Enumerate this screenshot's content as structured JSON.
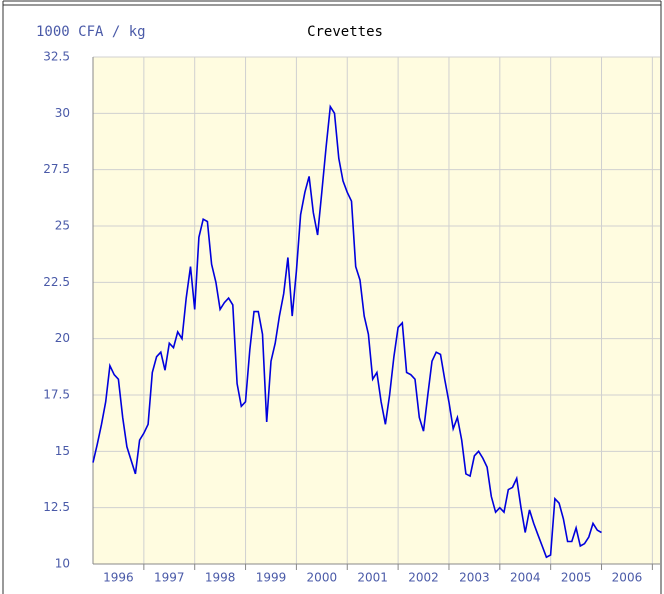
{
  "chart_data": {
    "type": "line",
    "title": "Crevettes",
    "ylabel": "1000 CFA / kg",
    "xlim": [
      1996,
      2007.15
    ],
    "ylim": [
      10,
      32.5
    ],
    "yticks": [
      10,
      12.5,
      15,
      17.5,
      20,
      22.5,
      25,
      27.5,
      30,
      32.5
    ],
    "xticks": [
      {
        "value": 1996.5,
        "label": "1996"
      },
      {
        "value": 1997.5,
        "label": "1997"
      },
      {
        "value": 1998.5,
        "label": "1998"
      },
      {
        "value": 1999.5,
        "label": "1999"
      },
      {
        "value": 2000.5,
        "label": "2000"
      },
      {
        "value": 2001.5,
        "label": "2001"
      },
      {
        "value": 2002.5,
        "label": "2002"
      },
      {
        "value": 2003.5,
        "label": "2003"
      },
      {
        "value": 2004.5,
        "label": "2004"
      },
      {
        "value": 2005.5,
        "label": "2005"
      },
      {
        "value": 2006.5,
        "label": "2006"
      }
    ],
    "xgrid": [
      1997,
      1998,
      1999,
      2000,
      2001,
      2002,
      2003,
      2004,
      2005,
      2006,
      2007
    ],
    "grid": true,
    "background": "#fffce0",
    "color": "#0000dd",
    "x_start": 1996,
    "x_step": 0.08333,
    "values": [
      14.5,
      15.3,
      16.2,
      17.2,
      18.8,
      18.4,
      18.2,
      16.5,
      15.2,
      14.6,
      14.0,
      15.5,
      15.8,
      16.2,
      18.5,
      19.2,
      19.4,
      18.6,
      19.8,
      19.6,
      20.3,
      20.0,
      21.8,
      23.2,
      21.3,
      24.5,
      25.3,
      25.2,
      23.3,
      22.5,
      21.3,
      21.6,
      21.8,
      21.5,
      18.0,
      17.0,
      17.2,
      19.5,
      21.2,
      21.2,
      20.2,
      16.3,
      19.0,
      19.8,
      21.0,
      22.0,
      23.6,
      21.0,
      23.0,
      25.5,
      26.5,
      27.2,
      25.6,
      24.6,
      26.5,
      28.5,
      30.3,
      30.0,
      28.0,
      27.0,
      26.5,
      26.1,
      23.2,
      22.6,
      21.0,
      20.2,
      18.2,
      18.5,
      17.2,
      16.2,
      17.5,
      19.2,
      20.5,
      20.7,
      18.5,
      18.4,
      18.2,
      16.5,
      15.9,
      17.5,
      19.0,
      19.4,
      19.3,
      18.2,
      17.2,
      16.0,
      16.5,
      15.5,
      14.0,
      13.9,
      14.8,
      15.0,
      14.7,
      14.3,
      13.0,
      12.3,
      12.5,
      12.3,
      13.3,
      13.4,
      13.8,
      12.5,
      11.4,
      12.4,
      11.8,
      11.3,
      10.8,
      10.3,
      10.4,
      12.9,
      12.7,
      12.0,
      11.0,
      11.0,
      11.6,
      10.8,
      10.9,
      11.2,
      11.8,
      11.5,
      11.4
    ]
  }
}
